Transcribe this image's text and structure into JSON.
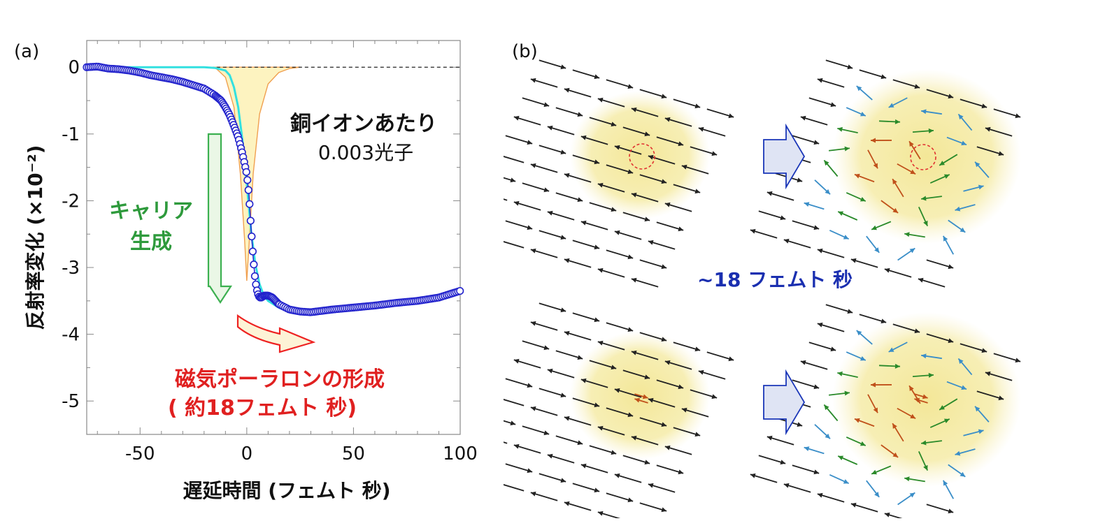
{
  "panel_a": {
    "label": "(a)",
    "annotation_photons": [
      "銅イオンあたり",
      "0.003光子"
    ],
    "carrier_label": [
      "キャリア",
      "生成"
    ],
    "polaron_label": [
      "磁気ポーラロンの形成",
      "(  約18フェムト 秒)"
    ]
  },
  "panel_b": {
    "label": "(b)",
    "time_label": "~18 フェムト 秒"
  },
  "colors": {
    "data_markers": "#2222cc",
    "fit_line": "#33e0e0",
    "pump_fill": "#fdf3c0",
    "pump_edge": "#f0a050",
    "carrier_arrow": "#3cb050",
    "polaron_arrow": "#ee2222",
    "time_label": "#1a2fb0",
    "glow": "#f4e99c",
    "spin_black": "#222222",
    "spin_blue": "#3a8ec8",
    "spin_green": "#2a8a2a",
    "spin_orange": "#c0501a",
    "block_arrow_fill": "#dfe4f4",
    "block_arrow_edge": "#1a36b8"
  },
  "chart_data": {
    "type": "scatter",
    "xlabel": "遅延時間 (フェムト 秒)",
    "ylabel": "反射率変化 (×10⁻²)",
    "xlim": [
      -75,
      100
    ],
    "ylim": [
      -5.5,
      0.4
    ],
    "xticks": [
      -50,
      0,
      50,
      100
    ],
    "yticks": [
      0,
      -1,
      -2,
      -3,
      -4,
      -5
    ],
    "legend": "none",
    "series": [
      {
        "kind": "markers",
        "x": [
          -75,
          -70,
          -65,
          -60,
          -55,
          -50,
          -45,
          -40,
          -35,
          -30,
          -25,
          -20,
          -15,
          -12,
          -10,
          -8,
          -6,
          -4,
          -2,
          0,
          1,
          2,
          3,
          4,
          5,
          6,
          7,
          8,
          10,
          12,
          15,
          20,
          25,
          30,
          40,
          50,
          60,
          70,
          80,
          90,
          100
        ],
        "y": [
          0,
          0.01,
          -0.02,
          -0.03,
          -0.05,
          -0.08,
          -0.12,
          -0.15,
          -0.18,
          -0.22,
          -0.27,
          -0.32,
          -0.42,
          -0.5,
          -0.6,
          -0.72,
          -0.88,
          -1.05,
          -1.3,
          -1.6,
          -1.9,
          -2.4,
          -2.85,
          -3.2,
          -3.38,
          -3.45,
          -3.45,
          -3.42,
          -3.42,
          -3.45,
          -3.55,
          -3.63,
          -3.66,
          -3.67,
          -3.63,
          -3.6,
          -3.57,
          -3.53,
          -3.5,
          -3.45,
          -3.35
        ]
      },
      {
        "kind": "fit-line",
        "x": [
          -75,
          -20,
          -15,
          -10,
          -8,
          -6,
          -4,
          -2,
          0,
          2,
          4,
          6,
          8,
          10,
          15,
          20,
          25,
          30,
          40,
          50,
          60,
          70,
          80,
          90,
          100
        ],
        "y": [
          0,
          0,
          -0.01,
          -0.05,
          -0.12,
          -0.3,
          -0.6,
          -1.1,
          -1.75,
          -2.45,
          -2.95,
          -3.25,
          -3.42,
          -3.5,
          -3.6,
          -3.66,
          -3.68,
          -3.68,
          -3.65,
          -3.62,
          -3.58,
          -3.54,
          -3.5,
          -3.45,
          -3.38
        ]
      },
      {
        "kind": "pump-pulse",
        "x": [
          -15,
          -10,
          -6,
          -3,
          -1,
          0,
          1,
          3,
          6,
          10,
          15,
          20,
          25
        ],
        "y": [
          0,
          -0.15,
          -0.6,
          -1.6,
          -2.6,
          -3.2,
          -2.7,
          -1.6,
          -0.7,
          -0.25,
          -0.08,
          -0.02,
          0
        ]
      }
    ]
  }
}
